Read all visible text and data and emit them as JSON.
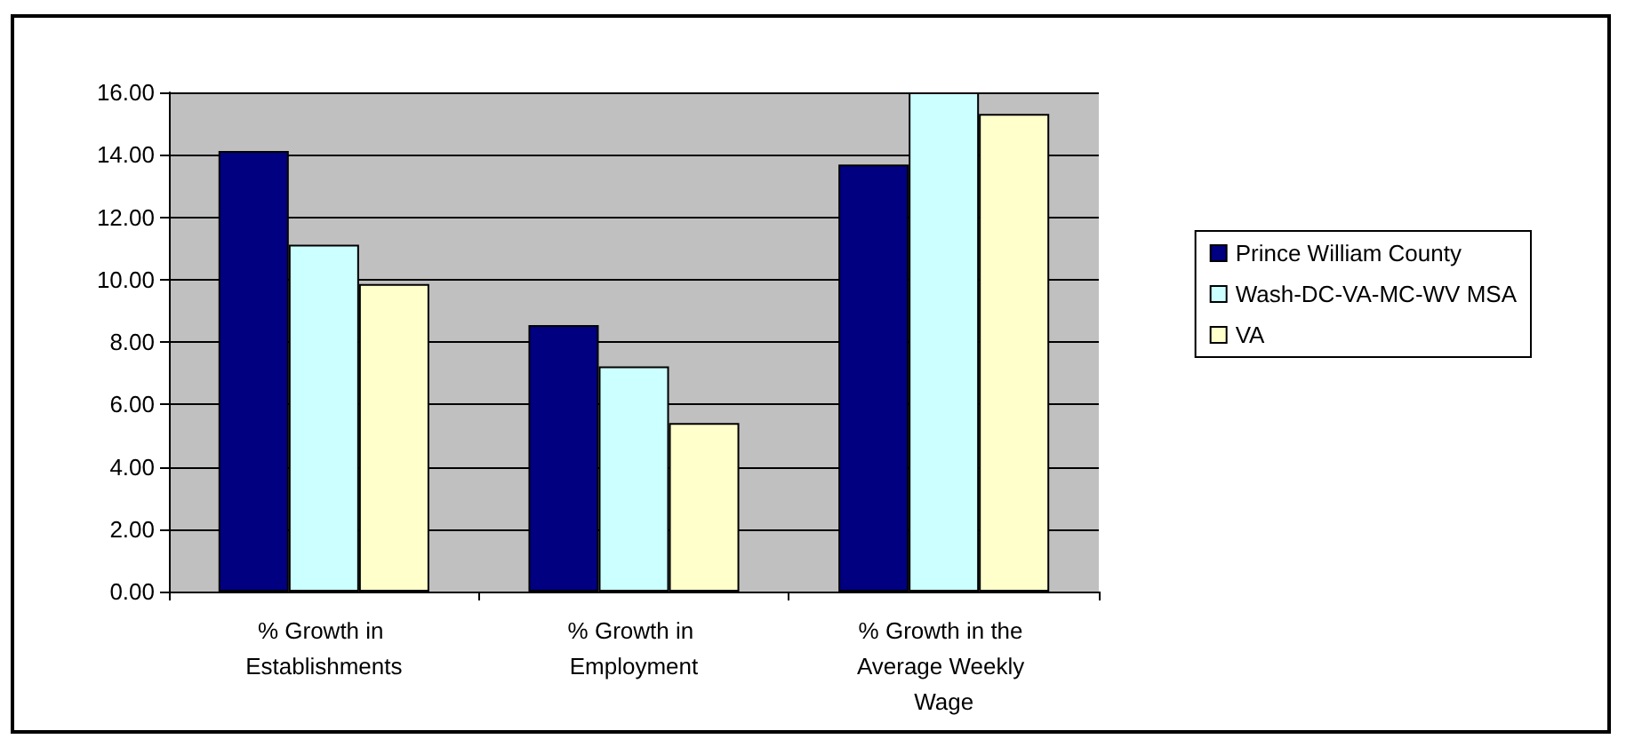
{
  "chart_data": {
    "type": "bar",
    "categories": [
      "% Growth in Establishments",
      "% Growth in Employment",
      "% Growth in the Average Weekly Wage"
    ],
    "series": [
      {
        "name": "Prince William County",
        "color": "#000080",
        "values": [
          14.12,
          8.54,
          13.69
        ]
      },
      {
        "name": "Wash-DC-VA-MC-WV MSA",
        "color": "#ccffff",
        "values": [
          11.12,
          7.22,
          16.0
        ]
      },
      {
        "name": "VA",
        "color": "#ffffcc",
        "values": [
          9.86,
          5.4,
          15.31
        ]
      }
    ],
    "ylim": [
      0,
      16
    ],
    "yticks": [
      {
        "value": 0,
        "label": "0.00"
      },
      {
        "value": 2,
        "label": "2.00"
      },
      {
        "value": 4,
        "label": "4.00"
      },
      {
        "value": 6,
        "label": "6.00"
      },
      {
        "value": 8,
        "label": "8.00"
      },
      {
        "value": 10,
        "label": "10.00"
      },
      {
        "value": 12,
        "label": "12.00"
      },
      {
        "value": 14,
        "label": "14.00"
      },
      {
        "value": 16,
        "label": "16.00"
      }
    ],
    "grid": "y",
    "legend": "right"
  }
}
